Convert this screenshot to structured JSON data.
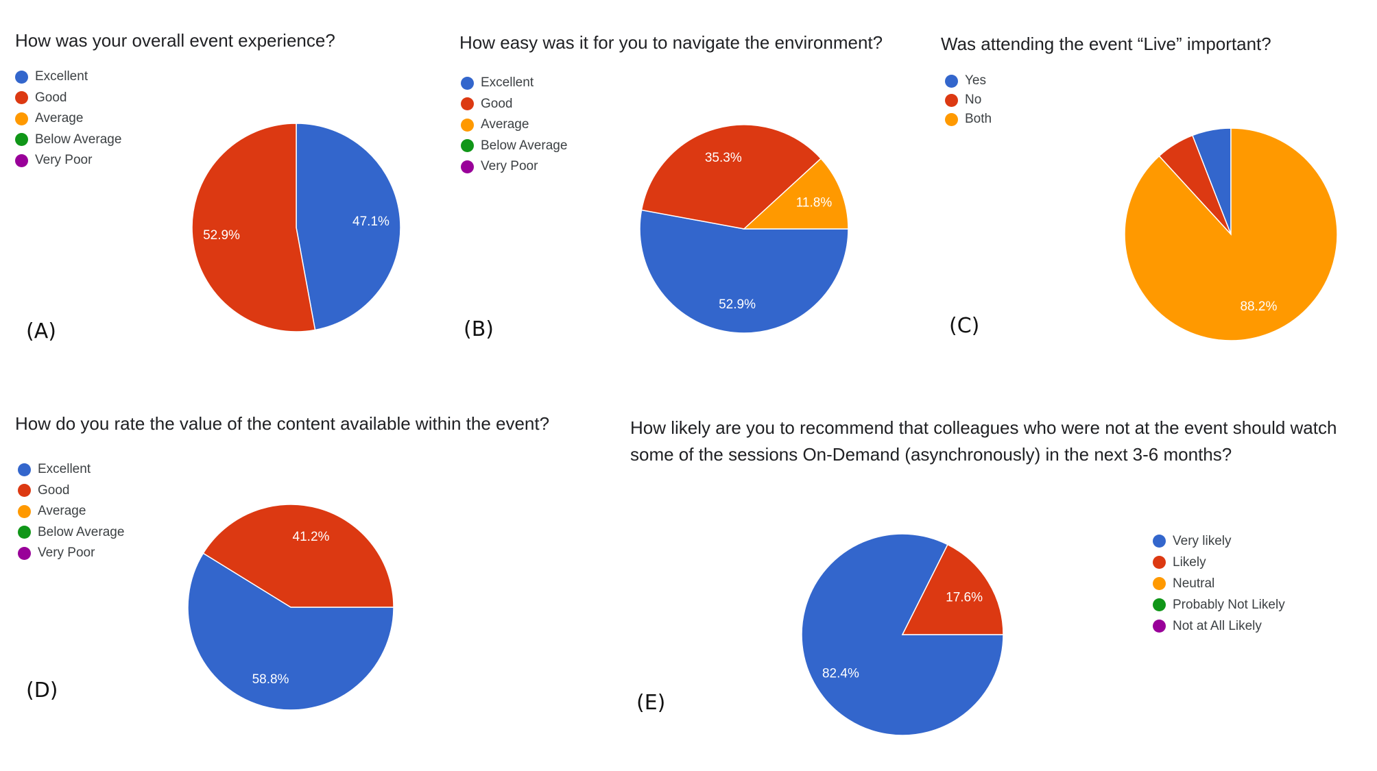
{
  "colors": {
    "blue": "#3366cc",
    "red": "#dc3912",
    "orange": "#ff9900",
    "green": "#109618",
    "purple": "#990099"
  },
  "chart_data": [
    {
      "panel": "(A)",
      "type": "pie",
      "title": "How was your overall event experience?",
      "legend": [
        "Excellent",
        "Good",
        "Average",
        "Below Average",
        "Very Poor"
      ],
      "legend_colors": [
        "#3366cc",
        "#dc3912",
        "#ff9900",
        "#109618",
        "#990099"
      ],
      "slices": [
        {
          "label": "Excellent",
          "value": 47.1,
          "color": "#3366cc",
          "data_label": "47.1%"
        },
        {
          "label": "Good",
          "value": 52.9,
          "color": "#dc3912",
          "data_label": "52.9%"
        }
      ],
      "legend_placement": "top-left"
    },
    {
      "panel": "(B)",
      "type": "pie",
      "title": "How easy was it for you to navigate the environment?",
      "legend": [
        "Excellent",
        "Good",
        "Average",
        "Below Average",
        "Very Poor"
      ],
      "legend_colors": [
        "#3366cc",
        "#dc3912",
        "#ff9900",
        "#109618",
        "#990099"
      ],
      "slices": [
        {
          "label": "Excellent",
          "value": 52.9,
          "color": "#3366cc",
          "data_label": "52.9%"
        },
        {
          "label": "Good",
          "value": 35.3,
          "color": "#dc3912",
          "data_label": "35.3%"
        },
        {
          "label": "Average",
          "value": 11.8,
          "color": "#ff9900",
          "data_label": "11.8%"
        }
      ],
      "legend_placement": "top-left"
    },
    {
      "panel": "(C)",
      "type": "pie",
      "title": "Was attending the event “Live” important?",
      "legend": [
        "Yes",
        "No",
        "Both"
      ],
      "legend_colors": [
        "#3366cc",
        "#dc3912",
        "#ff9900"
      ],
      "slices": [
        {
          "label": "Yes",
          "value": 5.9,
          "color": "#3366cc",
          "data_label": ""
        },
        {
          "label": "No",
          "value": 5.9,
          "color": "#dc3912",
          "data_label": ""
        },
        {
          "label": "Both",
          "value": 88.2,
          "color": "#ff9900",
          "data_label": "88.2%"
        }
      ],
      "legend_placement": "top-left"
    },
    {
      "panel": "(D)",
      "type": "pie",
      "title": "How do you rate the value of the content available within the event?",
      "legend": [
        "Excellent",
        "Good",
        "Average",
        "Below Average",
        "Very Poor"
      ],
      "legend_colors": [
        "#3366cc",
        "#dc3912",
        "#ff9900",
        "#109618",
        "#990099"
      ],
      "slices": [
        {
          "label": "Excellent",
          "value": 58.8,
          "color": "#3366cc",
          "data_label": "58.8%"
        },
        {
          "label": "Good",
          "value": 41.2,
          "color": "#dc3912",
          "data_label": "41.2%"
        }
      ],
      "legend_placement": "top-left"
    },
    {
      "panel": "(E)",
      "type": "pie",
      "title": "How likely are you to recommend that colleagues who were not at the event should watch some of the sessions On-Demand (asynchronously) in the next 3-6 months?",
      "legend": [
        "Very likely",
        "Likely",
        "Neutral",
        "Probably Not Likely",
        "Not at All Likely"
      ],
      "legend_colors": [
        "#3366cc",
        "#dc3912",
        "#ff9900",
        "#109618",
        "#990099"
      ],
      "slices": [
        {
          "label": "Very likely",
          "value": 82.4,
          "color": "#3366cc",
          "data_label": "82.4%"
        },
        {
          "label": "Likely",
          "value": 17.6,
          "color": "#dc3912",
          "data_label": "17.6%"
        }
      ],
      "legend_placement": "right"
    }
  ]
}
